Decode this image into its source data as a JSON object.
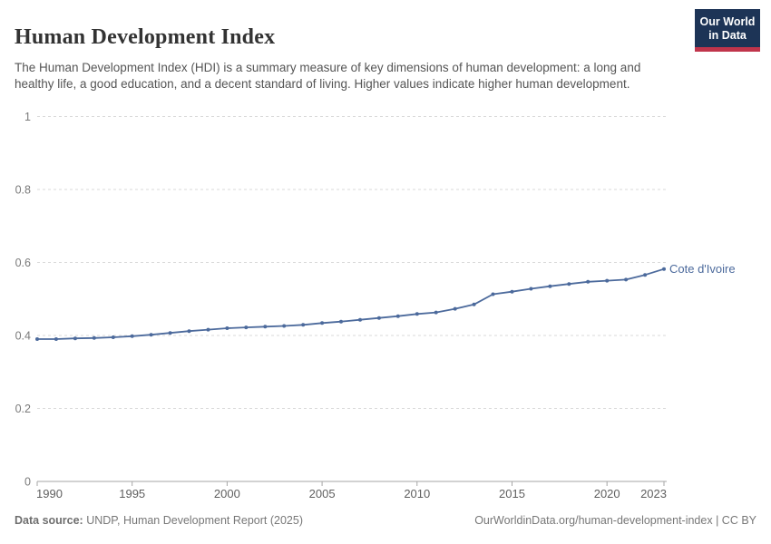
{
  "header": {
    "title": "Human Development Index",
    "subtitle": "The Human Development Index (HDI) is a summary measure of key dimensions of human development: a long and healthy life, a good education, and a decent standard of living. Higher values indicate higher human development.",
    "logo": {
      "line1": "Our World",
      "line2": "in Data"
    }
  },
  "chart_data": {
    "type": "line",
    "title": "Human Development Index",
    "entity": "Cote d'Ivoire",
    "x": [
      1990,
      1991,
      1992,
      1993,
      1994,
      1995,
      1996,
      1997,
      1998,
      1999,
      2000,
      2001,
      2002,
      2003,
      2004,
      2005,
      2006,
      2007,
      2008,
      2009,
      2010,
      2011,
      2012,
      2013,
      2014,
      2015,
      2016,
      2017,
      2018,
      2019,
      2020,
      2021,
      2022,
      2023
    ],
    "values": [
      0.39,
      0.39,
      0.392,
      0.393,
      0.395,
      0.398,
      0.402,
      0.407,
      0.412,
      0.416,
      0.42,
      0.422,
      0.424,
      0.426,
      0.429,
      0.434,
      0.438,
      0.443,
      0.448,
      0.453,
      0.459,
      0.463,
      0.473,
      0.485,
      0.513,
      0.52,
      0.528,
      0.535,
      0.541,
      0.547,
      0.55,
      0.553,
      0.566,
      0.582
    ],
    "xlim": [
      1990,
      2023
    ],
    "ylim": [
      0,
      1
    ],
    "xticks": [
      1990,
      1995,
      2000,
      2005,
      2010,
      2015,
      2020,
      2023
    ],
    "yticks": [
      0,
      0.2,
      0.4,
      0.6,
      0.8,
      1
    ],
    "grid": "horizontal-dashed",
    "legend_position": "end-of-line-label",
    "xlabel": "",
    "ylabel": ""
  },
  "footer": {
    "datasource_label": "Data source:",
    "datasource_text": " UNDP, Human Development Report (2025)",
    "link_text": "OurWorldinData.org/human-development-index",
    "separator": " | ",
    "license_text": "CC BY"
  },
  "colors": {
    "line": "#4C6A9C",
    "entity_label": "#4C6A9C",
    "grid": "#dadada",
    "axis": "#a6a6a6",
    "y_tick_label": "#7a7a7a",
    "x_tick_label": "#5f5f5f",
    "logo_bg": "#1d3456",
    "logo_red": "#c0344b",
    "title": "#333333",
    "subtitle": "#555555",
    "footer": "#777777"
  }
}
